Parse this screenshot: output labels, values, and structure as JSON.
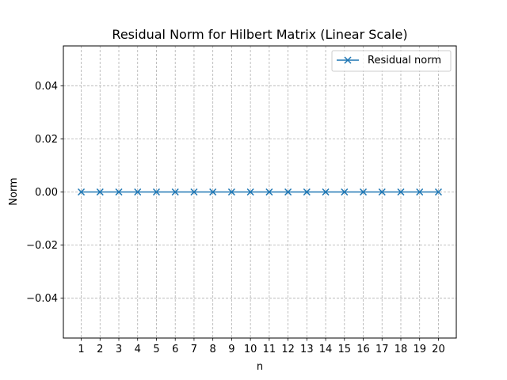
{
  "chart_data": {
    "type": "line",
    "title": "Residual Norm for Hilbert Matrix (Linear Scale)",
    "xlabel": "n",
    "ylabel": "Norm",
    "x": [
      1,
      2,
      3,
      4,
      5,
      6,
      7,
      8,
      9,
      10,
      11,
      12,
      13,
      14,
      15,
      16,
      17,
      18,
      19,
      20
    ],
    "series": [
      {
        "name": "Residual norm",
        "values": [
          0,
          0,
          0,
          0,
          0,
          0,
          0,
          0,
          0,
          0,
          0,
          0,
          0,
          0,
          0,
          0,
          0,
          0,
          0,
          0
        ],
        "color": "#1f77b4",
        "marker": "x"
      }
    ],
    "xlim": [
      0.05,
      20.95
    ],
    "ylim": [
      -0.055,
      0.055
    ],
    "xticks": [
      1,
      2,
      3,
      4,
      5,
      6,
      7,
      8,
      9,
      10,
      11,
      12,
      13,
      14,
      15,
      16,
      17,
      18,
      19,
      20
    ],
    "xtick_labels": [
      "1",
      "2",
      "3",
      "4",
      "5",
      "6",
      "7",
      "8",
      "9",
      "10",
      "11",
      "12",
      "13",
      "14",
      "15",
      "16",
      "17",
      "18",
      "19",
      "20"
    ],
    "yticks": [
      -0.04,
      -0.02,
      0.0,
      0.02,
      0.04
    ],
    "ytick_labels": [
      "−0.04",
      "−0.02",
      "0.00",
      "0.02",
      "0.04"
    ],
    "grid": true,
    "legend_position": "top-right"
  }
}
